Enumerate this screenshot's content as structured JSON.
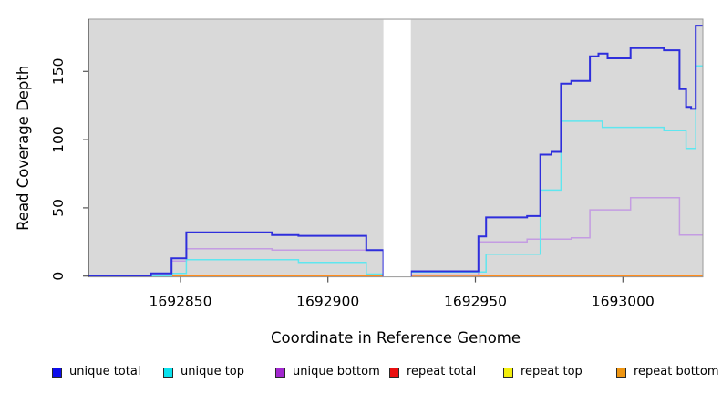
{
  "figure": {
    "background_color": "#ffffff"
  },
  "chart_data": {
    "type": "line",
    "subtype": "step",
    "title": "",
    "xlabel": "Coordinate in Reference Genome",
    "ylabel": "Read Coverage Depth",
    "xlim": [
      1692818.8,
      1693027.1
    ],
    "ylim": [
      0,
      188
    ],
    "x_ticks": [
      1692850,
      1692900,
      1692950,
      1693000
    ],
    "y_ticks": [
      0,
      50,
      100,
      150
    ],
    "grid": false,
    "plot_bg": "#d9d9d9",
    "legend_position": "bottom",
    "masked_region": {
      "x_start": 1692918.8,
      "x_end": 1692928.1,
      "color": "#ffffff"
    },
    "series": [
      {
        "name": "repeat total",
        "color": "#dd2222",
        "width": 1.5,
        "points": [
          [
            1692818.8,
            0
          ]
        ]
      },
      {
        "name": "repeat top",
        "color": "#eded55",
        "width": 1.5,
        "points": [
          [
            1692818.8,
            0
          ]
        ]
      },
      {
        "name": "repeat bottom",
        "color": "#ff8d1e",
        "width": 1.7,
        "points": [
          [
            1692818.8,
            0
          ]
        ]
      },
      {
        "name": "unique bottom",
        "color": "#c49ce2",
        "width": 1.5,
        "points": [
          [
            1692818.8,
            0
          ],
          [
            1692847,
            11
          ],
          [
            1692852,
            20
          ],
          [
            1692881,
            19
          ],
          [
            1692918.8,
            0
          ],
          [
            1692928.1,
            0.8
          ],
          [
            1692951,
            25
          ],
          [
            1692967.5,
            27
          ],
          [
            1692982.5,
            28
          ],
          [
            1692988.8,
            48.5
          ],
          [
            1693002.6,
            57.5
          ],
          [
            1693019.2,
            30
          ]
        ]
      },
      {
        "name": "unique top",
        "color": "#5fe6ef",
        "width": 1.5,
        "points": [
          [
            1692818.8,
            0
          ],
          [
            1692847,
            2
          ],
          [
            1692852,
            12
          ],
          [
            1692890,
            10
          ],
          [
            1692913,
            1.5
          ],
          [
            1692918.8,
            0
          ],
          [
            1692928.1,
            3
          ],
          [
            1692953.6,
            16
          ],
          [
            1692972,
            63
          ],
          [
            1692979,
            113.5
          ],
          [
            1692993,
            109
          ],
          [
            1693013.9,
            106.5
          ],
          [
            1693021.4,
            93.5
          ],
          [
            1693024.7,
            154
          ]
        ]
      },
      {
        "name": "unique total",
        "color": "#2e2edc",
        "width": 2,
        "points": [
          [
            1692818.8,
            0
          ],
          [
            1692840,
            2
          ],
          [
            1692847,
            13
          ],
          [
            1692852,
            32
          ],
          [
            1692881,
            30
          ],
          [
            1692890,
            29.5
          ],
          [
            1692913,
            19
          ],
          [
            1692918.8,
            0
          ],
          [
            1692928.1,
            3.5
          ],
          [
            1692951,
            29
          ],
          [
            1692953.6,
            43
          ],
          [
            1692967.5,
            44
          ],
          [
            1692972,
            89
          ],
          [
            1692975.8,
            91
          ],
          [
            1692979,
            141
          ],
          [
            1692982.5,
            143
          ],
          [
            1692988.8,
            161
          ],
          [
            1692991.7,
            163
          ],
          [
            1692994.8,
            159.5
          ],
          [
            1693002.6,
            167
          ],
          [
            1693013.9,
            165.5
          ],
          [
            1693019.2,
            137
          ],
          [
            1693021.4,
            124
          ],
          [
            1693023.1,
            122.5
          ],
          [
            1693024.7,
            183.5
          ]
        ]
      }
    ],
    "legend": [
      {
        "label": "unique total",
        "marker_color": "#0d0dec"
      },
      {
        "label": "unique top",
        "marker_color": "#0ae2ee"
      },
      {
        "label": "unique bottom",
        "marker_color": "#a228cf"
      },
      {
        "label": "repeat total",
        "marker_color": "#e90f0f"
      },
      {
        "label": "repeat top",
        "marker_color": "#f2ee0c"
      },
      {
        "label": "repeat bottom",
        "marker_color": "#ee9512"
      }
    ]
  }
}
